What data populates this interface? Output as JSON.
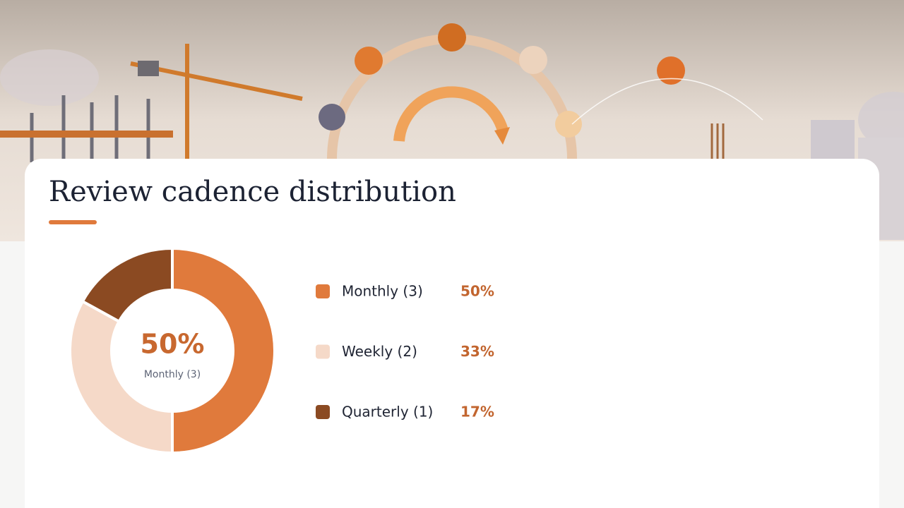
{
  "chart_data": {
    "type": "pie",
    "donut": true,
    "title": "Review cadence distribution",
    "categories": [
      "Monthly (3)",
      "Weekly (2)",
      "Quarterly (1)"
    ],
    "values": [
      50,
      33,
      17
    ],
    "value_labels": [
      "50%",
      "33%",
      "17%"
    ],
    "colors": [
      "#e07a3c",
      "#f5d9c8",
      "#8b4a22"
    ]
  }
}
